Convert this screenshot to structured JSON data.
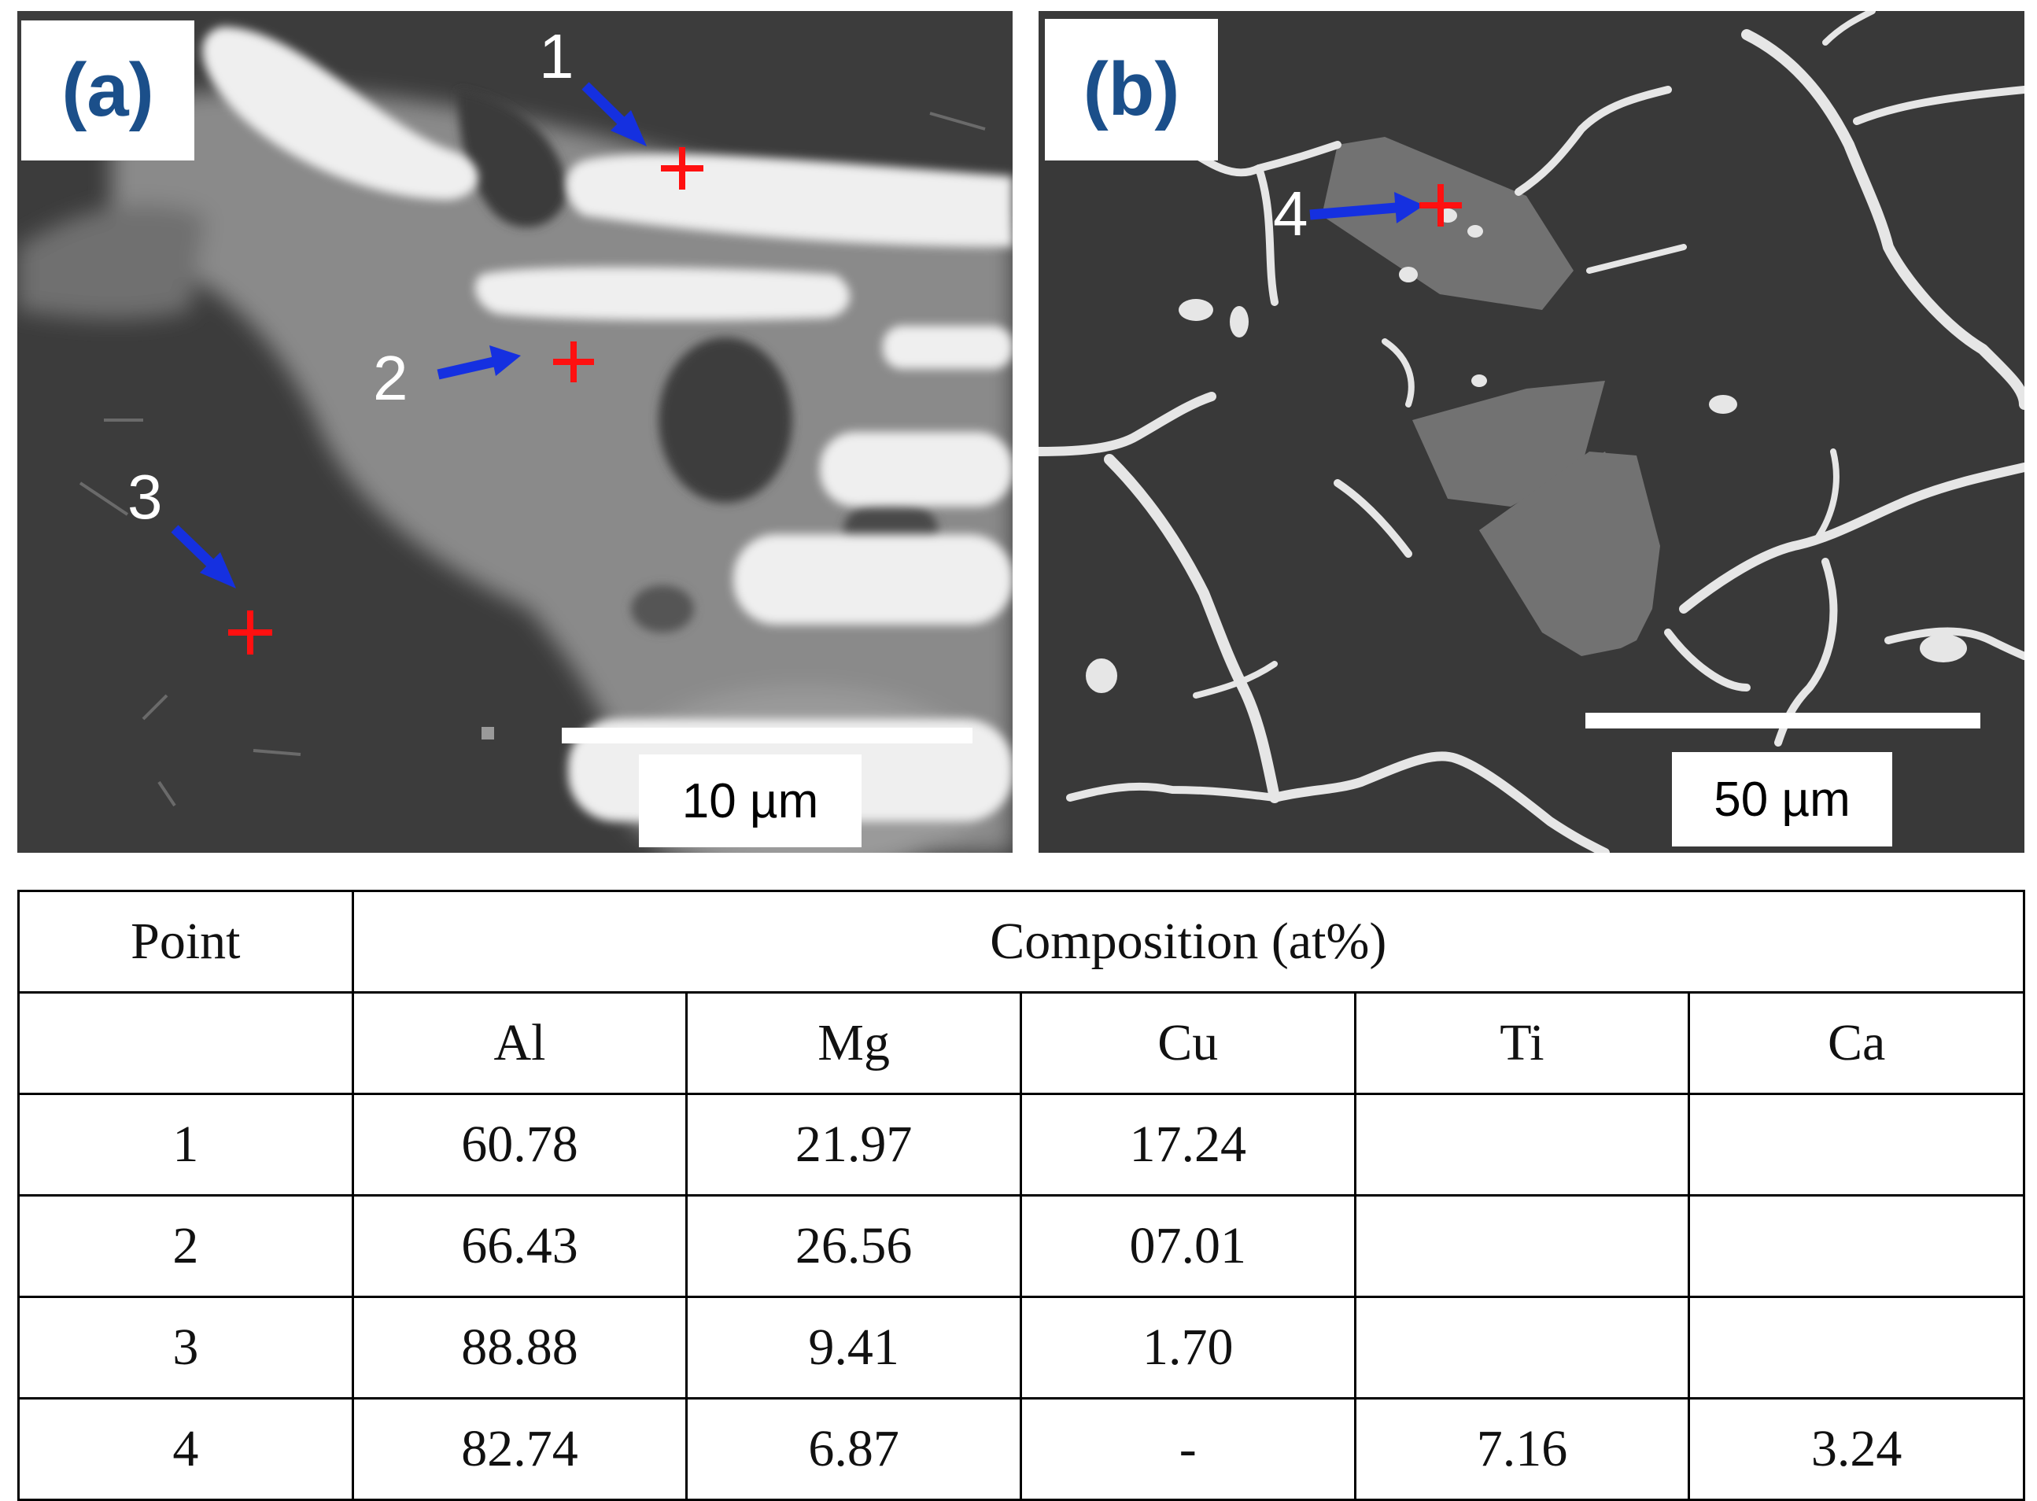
{
  "panels": {
    "a": {
      "label": "(a)",
      "scale_bar": "10 µm",
      "points": [
        "1",
        "2",
        "3"
      ]
    },
    "b": {
      "label": "(b)",
      "scale_bar": "50 µm",
      "points": [
        "4"
      ]
    }
  },
  "colors": {
    "panel_label": "#1b4f8a",
    "arrow": "#1530e0",
    "marker": "#ff1010"
  },
  "table": {
    "header_point": "Point",
    "header_composition": "Composition (at%)",
    "elements": [
      "Al",
      "Mg",
      "Cu",
      "Ti",
      "Ca"
    ],
    "rows": [
      {
        "point": "1",
        "values": [
          "60.78",
          "21.97",
          "17.24",
          "",
          ""
        ]
      },
      {
        "point": "2",
        "values": [
          "66.43",
          "26.56",
          "07.01",
          "",
          ""
        ]
      },
      {
        "point": "3",
        "values": [
          "88.88",
          "9.41",
          "1.70",
          "",
          ""
        ]
      },
      {
        "point": "4",
        "values": [
          "82.74",
          "6.87",
          "-",
          "7.16",
          "3.24"
        ]
      }
    ]
  }
}
